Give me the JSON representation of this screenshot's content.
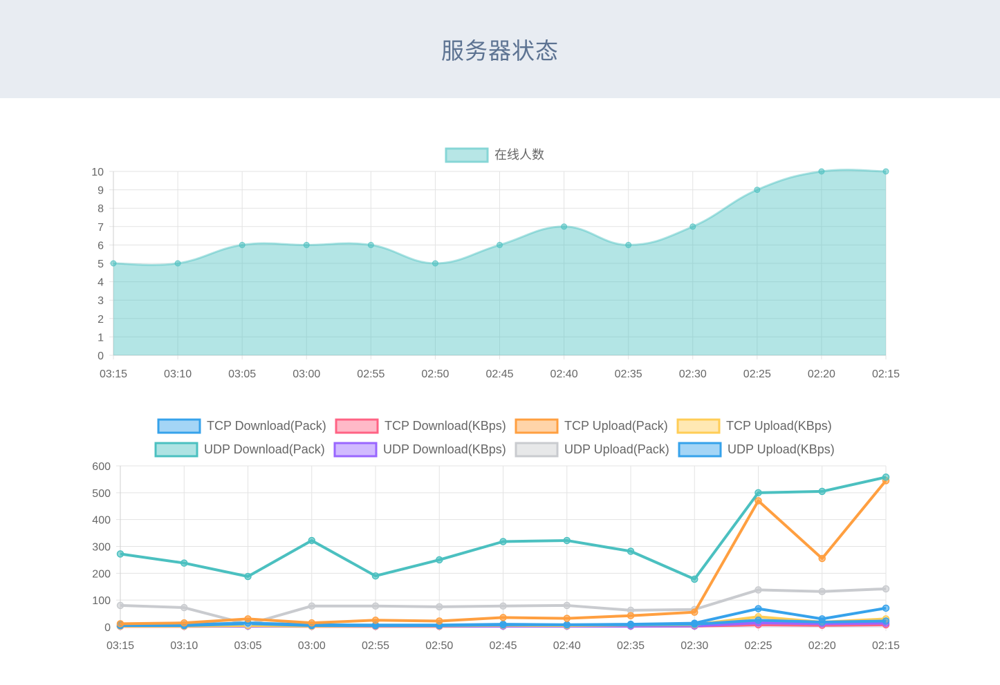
{
  "page": {
    "title": "服务器状态"
  },
  "chart_data": [
    {
      "type": "area",
      "categories": [
        "03:15",
        "03:10",
        "03:05",
        "03:00",
        "02:55",
        "02:50",
        "02:45",
        "02:40",
        "02:35",
        "02:30",
        "02:25",
        "02:20",
        "02:15"
      ],
      "series": [
        {
          "name": "在线人数",
          "values": [
            5,
            5,
            6,
            6,
            6,
            5,
            6,
            7,
            6,
            7,
            9,
            10,
            10
          ],
          "color": "#4bc0c0"
        }
      ],
      "ylim": [
        0,
        10
      ],
      "yticks": [
        0,
        1,
        2,
        3,
        4,
        5,
        6,
        7,
        8,
        9,
        10
      ],
      "grid": true,
      "legend": "top-center"
    },
    {
      "type": "line",
      "categories": [
        "03:15",
        "03:10",
        "03:05",
        "03:00",
        "02:55",
        "02:50",
        "02:45",
        "02:40",
        "02:35",
        "02:30",
        "02:25",
        "02:20",
        "02:15"
      ],
      "series": [
        {
          "name": "TCP Download(Pack)",
          "color": "#36a2eb",
          "values": [
            5,
            5,
            12,
            5,
            5,
            5,
            8,
            8,
            8,
            10,
            25,
            18,
            22
          ]
        },
        {
          "name": "TCP Download(KBps)",
          "color": "#ff6384",
          "values": [
            2,
            2,
            3,
            2,
            2,
            2,
            3,
            3,
            3,
            3,
            8,
            6,
            8
          ]
        },
        {
          "name": "TCP Upload(Pack)",
          "color": "#ff9f40",
          "values": [
            12,
            15,
            30,
            15,
            25,
            22,
            35,
            32,
            42,
            55,
            470,
            255,
            545
          ]
        },
        {
          "name": "TCP Upload(KBps)",
          "color": "#ffcd56",
          "values": [
            3,
            3,
            5,
            3,
            4,
            4,
            6,
            5,
            7,
            8,
            38,
            18,
            30
          ]
        },
        {
          "name": "UDP Download(Pack)",
          "color": "#4bc0c0",
          "values": [
            272,
            238,
            188,
            322,
            190,
            250,
            318,
            322,
            282,
            178,
            500,
            505,
            558
          ]
        },
        {
          "name": "UDP Download(KBps)",
          "color": "#9966ff",
          "values": [
            3,
            3,
            3,
            3,
            3,
            3,
            3,
            3,
            3,
            4,
            15,
            12,
            14
          ]
        },
        {
          "name": "UDP Upload(Pack)",
          "color": "#c9cbcf",
          "values": [
            80,
            72,
            10,
            78,
            78,
            75,
            78,
            80,
            62,
            65,
            138,
            132,
            142
          ]
        },
        {
          "name": "UDP Upload(KBps)",
          "color": "#36a2eb",
          "values": [
            8,
            8,
            15,
            8,
            7,
            7,
            10,
            8,
            10,
            14,
            68,
            30,
            70
          ]
        }
      ],
      "ylim": [
        0,
        600
      ],
      "yticks": [
        0,
        100,
        200,
        300,
        400,
        500,
        600
      ],
      "grid": true,
      "legend": "top-center"
    }
  ]
}
